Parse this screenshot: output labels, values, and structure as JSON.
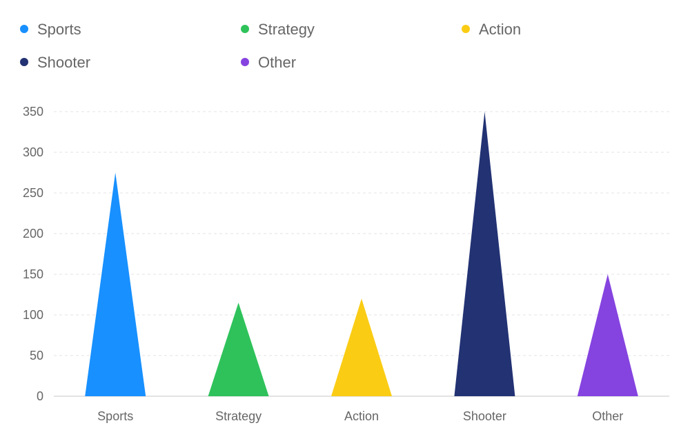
{
  "chart_data": {
    "type": "bar",
    "categories": [
      "Sports",
      "Strategy",
      "Action",
      "Shooter",
      "Other"
    ],
    "values": [
      275,
      115,
      120,
      350,
      150
    ],
    "colors": [
      "#1890ff",
      "#2fc25b",
      "#facc14",
      "#223273",
      "#8543e0"
    ],
    "title": "",
    "xlabel": "",
    "ylabel": "",
    "ylim": [
      0,
      350
    ],
    "yticks": [
      0,
      50,
      100,
      150,
      200,
      250,
      300,
      350
    ],
    "grid": true,
    "legend_position": "top",
    "legend": [
      {
        "label": "Sports",
        "color": "#1890ff"
      },
      {
        "label": "Strategy",
        "color": "#2fc25b"
      },
      {
        "label": "Action",
        "color": "#facc14"
      },
      {
        "label": "Shooter",
        "color": "#223273"
      },
      {
        "label": "Other",
        "color": "#8543e0"
      }
    ]
  }
}
